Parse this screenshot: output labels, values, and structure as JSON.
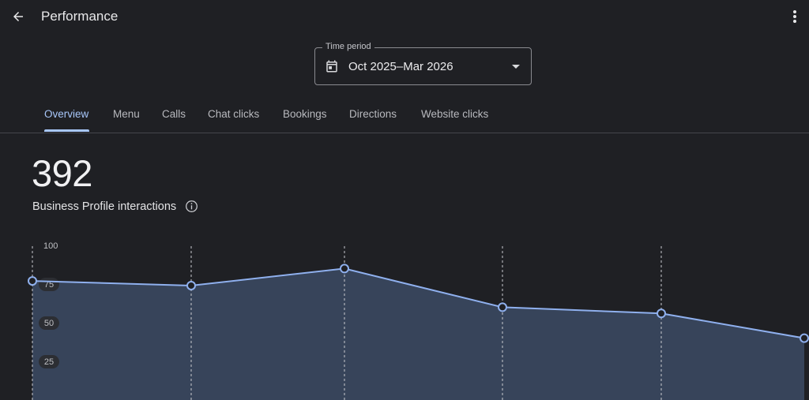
{
  "header": {
    "title": "Performance",
    "back_icon": "arrow-back-icon",
    "more_icon": "more-vert-icon"
  },
  "time_period": {
    "label": "Time period",
    "value": "Oct 2025–Mar 2026",
    "icon": "calendar-icon"
  },
  "tabs": [
    {
      "label": "Overview",
      "active": true
    },
    {
      "label": "Menu",
      "active": false
    },
    {
      "label": "Calls",
      "active": false
    },
    {
      "label": "Chat clicks",
      "active": false
    },
    {
      "label": "Bookings",
      "active": false
    },
    {
      "label": "Directions",
      "active": false
    },
    {
      "label": "Website clicks",
      "active": false
    }
  ],
  "summary": {
    "value": "392",
    "label": "Business Profile interactions"
  },
  "colors": {
    "accent": "#a8c7fa",
    "line": "#8fb0ee",
    "area": "#37445a",
    "background": "#1f2024"
  },
  "chart_data": {
    "type": "area",
    "y_ticks": [
      100,
      75,
      50,
      25
    ],
    "ylim": [
      0,
      100
    ],
    "series": [
      {
        "values": [
          77,
          74,
          85,
          60,
          56,
          40
        ]
      }
    ]
  }
}
